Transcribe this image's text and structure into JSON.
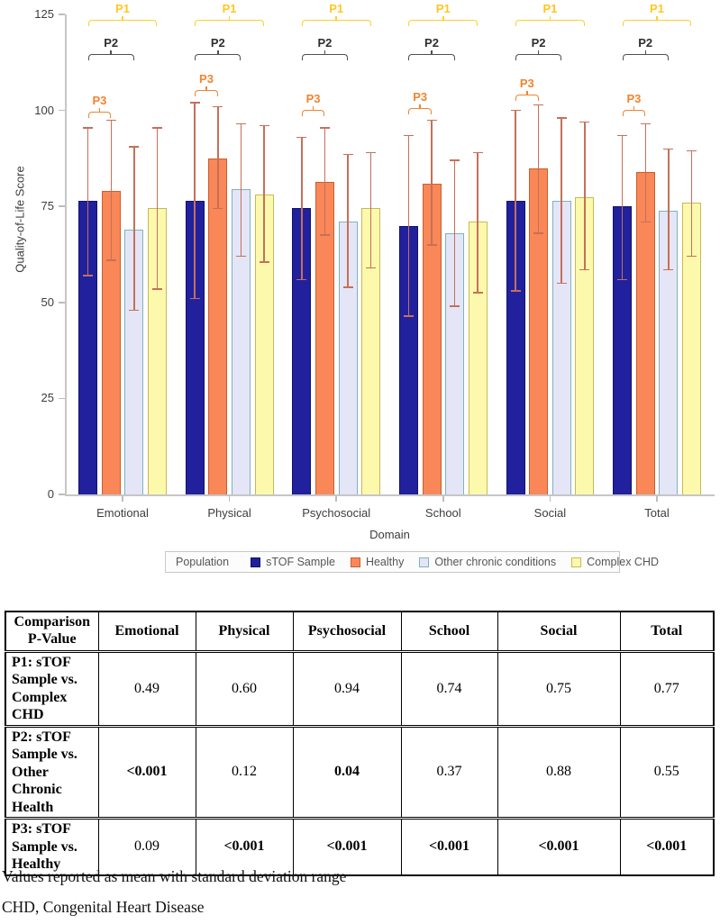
{
  "chart_data": {
    "type": "bar",
    "title": "",
    "xlabel": "Domain",
    "ylabel": "Quality-of-Life Score",
    "ylim": [
      0,
      125
    ],
    "y_ticks": [
      0,
      25,
      50,
      75,
      100,
      125
    ],
    "grid": false,
    "legend_position": "bottom",
    "legend_title": "Population",
    "categories": [
      "Emotional",
      "Physical",
      "Psychosocial",
      "School",
      "Social",
      "Total"
    ],
    "series": [
      {
        "name": "sTOF Sample",
        "color": "#21219E",
        "border": "#12126b",
        "values": [
          76.5,
          76.5,
          74.5,
          70.0,
          76.5,
          75.0
        ],
        "err_low": [
          57.0,
          51.0,
          56.0,
          46.5,
          53.0,
          56.0
        ],
        "err_high": [
          95.5,
          102.0,
          93.0,
          93.5,
          100.0,
          93.5
        ]
      },
      {
        "name": "Healthy",
        "color": "#FA8757",
        "border": "#c85f2f",
        "values": [
          79.0,
          87.5,
          81.5,
          81.0,
          85.0,
          84.0
        ],
        "err_low": [
          61.0,
          74.5,
          67.5,
          65.0,
          68.0,
          71.0
        ],
        "err_high": [
          97.5,
          101.0,
          95.5,
          97.5,
          101.5,
          96.5
        ]
      },
      {
        "name": "Other chronic conditions",
        "color": "#E4E6F7",
        "border": "#7fb2ba",
        "values": [
          69.0,
          79.5,
          71.0,
          68.0,
          76.5,
          74.0
        ],
        "err_low": [
          48.0,
          62.0,
          54.0,
          49.0,
          55.0,
          58.5
        ],
        "err_high": [
          90.5,
          96.5,
          88.5,
          87.0,
          98.0,
          90.0
        ]
      },
      {
        "name": "Complex CHD",
        "color": "#FCF9AD",
        "border": "#c6ba55",
        "values": [
          74.5,
          78.0,
          74.5,
          71.0,
          77.5,
          76.0
        ],
        "err_low": [
          53.5,
          60.5,
          59.0,
          52.5,
          58.5,
          62.0
        ],
        "err_high": [
          95.5,
          96.0,
          89.0,
          89.0,
          97.0,
          89.5
        ]
      }
    ],
    "error_bar_color": "#c5705a",
    "brackets": [
      {
        "id": "P1",
        "color": "#FFCF2E",
        "label_color": "#FFC61E",
        "span_bars": 4
      },
      {
        "id": "P2",
        "color": "#4f4f4f",
        "label_color": "#2e2e2e",
        "span_bars": 3
      },
      {
        "id": "P3",
        "color": "#F08430",
        "label_color": "#F08430",
        "span_bars": 2
      }
    ],
    "p3_bracket_y": [
      124,
      100,
      122,
      120,
      105,
      122
    ]
  },
  "table": {
    "headers": [
      "Comparison P-Value",
      "Emotional",
      "Physical",
      "Psychosocial",
      "School",
      "Social",
      "Total"
    ],
    "rows": [
      {
        "label": "P1: sTOF Sample vs. Complex CHD",
        "cells": [
          {
            "v": "0.49",
            "b": false
          },
          {
            "v": "0.60",
            "b": false
          },
          {
            "v": "0.94",
            "b": false
          },
          {
            "v": "0.74",
            "b": false
          },
          {
            "v": "0.75",
            "b": false
          },
          {
            "v": "0.77",
            "b": false
          }
        ]
      },
      {
        "label": "P2: sTOF Sample vs. Other Chronic Health",
        "cells": [
          {
            "v": "<0.001",
            "b": true
          },
          {
            "v": "0.12",
            "b": false
          },
          {
            "v": "0.04",
            "b": true
          },
          {
            "v": "0.37",
            "b": false
          },
          {
            "v": "0.88",
            "b": false
          },
          {
            "v": "0.55",
            "b": false
          }
        ]
      },
      {
        "label": "P3: sTOF Sample vs. Healthy",
        "cells": [
          {
            "v": "0.09",
            "b": false
          },
          {
            "v": "<0.001",
            "b": true
          },
          {
            "v": "<0.001",
            "b": true
          },
          {
            "v": "<0.001",
            "b": true
          },
          {
            "v": "<0.001",
            "b": true
          },
          {
            "v": "<0.001",
            "b": true
          }
        ]
      }
    ]
  },
  "notes": [
    "Values reported as mean with standard deviation range",
    "CHD, Congenital Heart Disease"
  ]
}
